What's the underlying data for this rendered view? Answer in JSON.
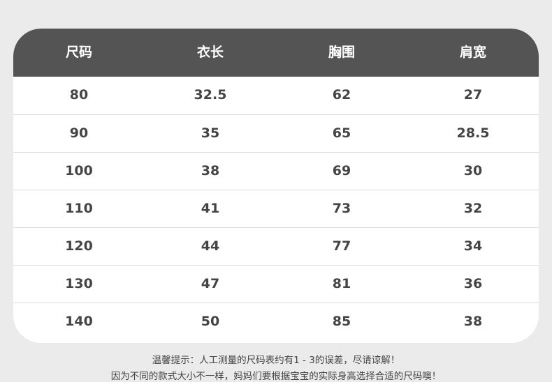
{
  "table": {
    "headers": [
      "尺码",
      "衣长",
      "胸围",
      "肩宽"
    ],
    "rows": [
      [
        "80",
        "32.5",
        "62",
        "27"
      ],
      [
        "90",
        "35",
        "65",
        "28.5"
      ],
      [
        "100",
        "38",
        "69",
        "30"
      ],
      [
        "110",
        "41",
        "73",
        "32"
      ],
      [
        "120",
        "44",
        "77",
        "34"
      ],
      [
        "130",
        "47",
        "81",
        "36"
      ],
      [
        "140",
        "50",
        "85",
        "38"
      ]
    ]
  },
  "notes": [
    "温馨提示：人工测量的尺码表约有1 - 3的误差，尽请谅解！",
    "因为不同的款式大小不一样，妈妈们要根据宝宝的实际身高选择合适的尺码噢！"
  ],
  "colors": {
    "header_bg": "#545454",
    "background": "#ebebeb"
  }
}
